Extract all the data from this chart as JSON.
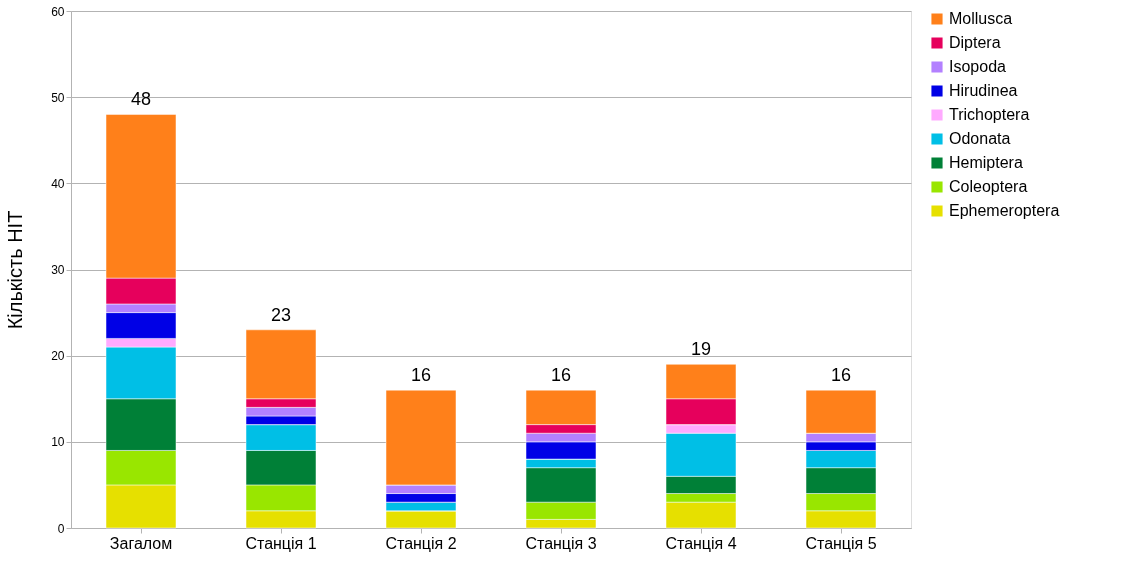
{
  "chart_data": {
    "type": "bar",
    "stacked": true,
    "ylabel": "Кількість НІТ",
    "categories": [
      "Загалом",
      "Станція 1",
      "Станція 2",
      "Станція 3",
      "Станція 4",
      "Станція 5"
    ],
    "series": [
      {
        "name": "Ephemeroptera",
        "color": "#e6e000",
        "values": [
          5,
          2,
          2,
          1,
          3,
          2
        ]
      },
      {
        "name": "Coleoptera",
        "color": "#99e600",
        "values": [
          4,
          3,
          0,
          2,
          1,
          2
        ]
      },
      {
        "name": "Hemiptera",
        "color": "#008037",
        "values": [
          6,
          4,
          0,
          4,
          2,
          3
        ]
      },
      {
        "name": "Odonata",
        "color": "#00bfe6",
        "values": [
          6,
          3,
          1,
          1,
          5,
          2
        ]
      },
      {
        "name": "Trichoptera",
        "color": "#ffaaff",
        "values": [
          1,
          0,
          0,
          0,
          1,
          0
        ]
      },
      {
        "name": "Hirudinea",
        "color": "#0000e6",
        "values": [
          3,
          1,
          1,
          2,
          0,
          1
        ]
      },
      {
        "name": "Isopoda",
        "color": "#b380ff",
        "values": [
          1,
          1,
          1,
          1,
          0,
          1
        ]
      },
      {
        "name": "Diptera",
        "color": "#e6005c",
        "values": [
          3,
          1,
          0,
          1,
          3,
          0
        ]
      },
      {
        "name": "Mollusca",
        "color": "#ff801a",
        "values": [
          19,
          8,
          11,
          4,
          4,
          5
        ]
      }
    ],
    "totals": [
      "48",
      "23",
      "16",
      "16",
      "19",
      "16"
    ],
    "ylim": [
      0,
      60
    ],
    "yticks": [
      0,
      10,
      20,
      30,
      40,
      50,
      60
    ],
    "grid": "y",
    "legend": "right"
  }
}
